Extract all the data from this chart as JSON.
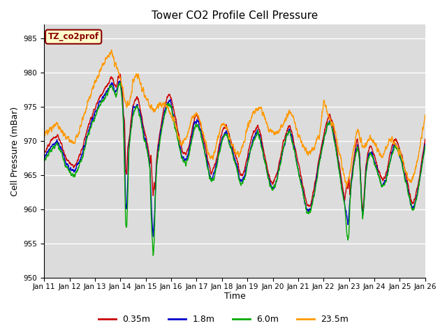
{
  "title": "Tower CO2 Profile Cell Pressure",
  "xlabel": "Time",
  "ylabel": "Cell Pressure (mBar)",
  "ylim": [
    950,
    987
  ],
  "yticks": [
    950,
    955,
    960,
    965,
    970,
    975,
    980,
    985
  ],
  "xlim": [
    0,
    360
  ],
  "xtick_labels": [
    "Jan 11",
    "Jan 12",
    "Jan 13",
    "Jan 14",
    "Jan 15",
    "Jan 16",
    "Jan 17",
    "Jan 18",
    "Jan 19",
    "Jan 20",
    "Jan 21",
    "Jan 22",
    "Jan 23",
    "Jan 24",
    "Jan 25",
    "Jan 26"
  ],
  "xtick_positions": [
    0,
    24,
    48,
    72,
    96,
    120,
    144,
    168,
    192,
    216,
    240,
    264,
    288,
    312,
    336,
    360
  ],
  "series": {
    "0.35m": {
      "color": "#cc0000",
      "lw": 1.0
    },
    "1.8m": {
      "color": "#0000cc",
      "lw": 1.0
    },
    "6.0m": {
      "color": "#00aa00",
      "lw": 1.0
    },
    "23.5m": {
      "color": "#ff9900",
      "lw": 1.0
    }
  },
  "legend_label": "TZ_co2prof",
  "legend_color": "#8b0000",
  "legend_bg": "#ffffcc",
  "bg_color": "#dcdcdc",
  "grid_color": "#ffffff"
}
